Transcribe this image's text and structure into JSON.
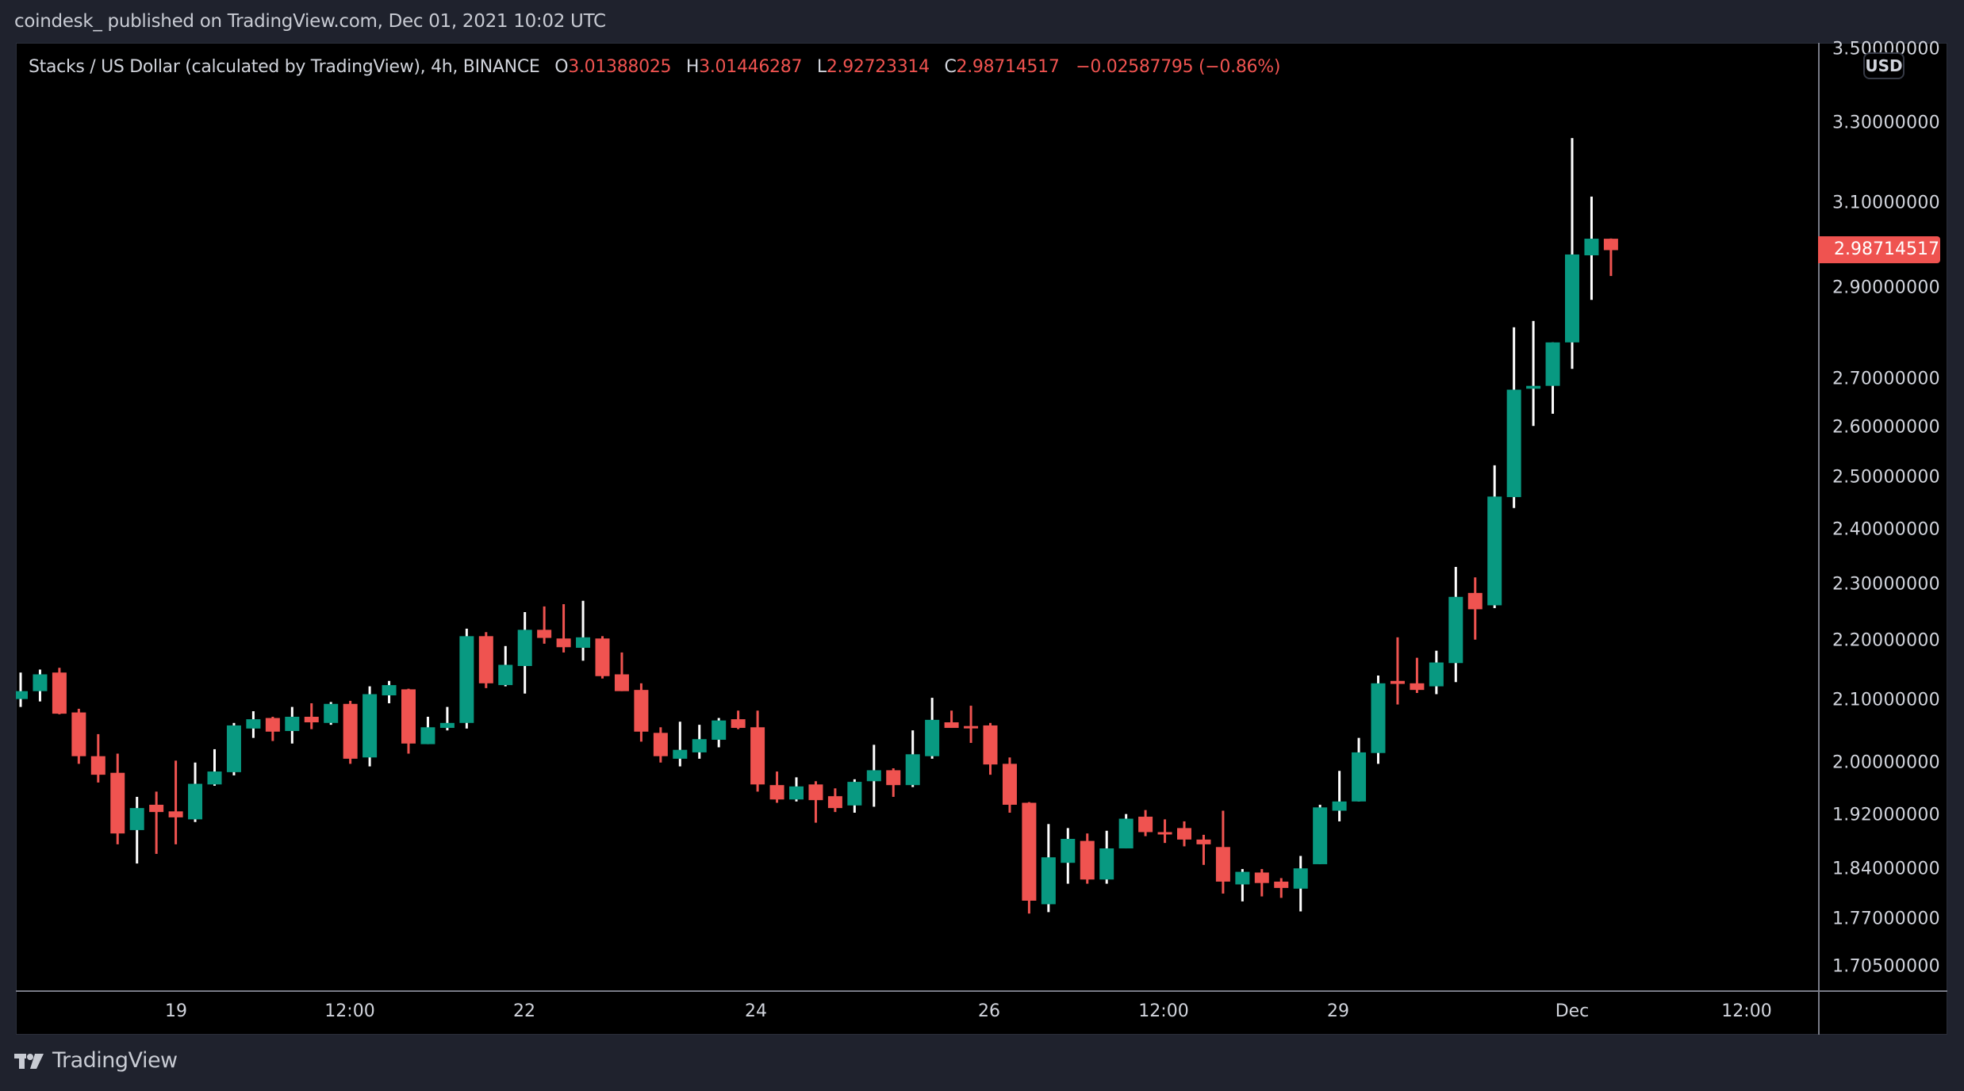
{
  "header": {
    "publisher": "coindesk_ published on TradingView.com, Dec 01, 2021 10:02 UTC"
  },
  "legend": {
    "symbol": "Stacks / US Dollar (calculated by TradingView), 4h, BINANCE",
    "o_label": "O",
    "o_value": "3.01388025",
    "h_label": "H",
    "h_value": "3.01446287",
    "l_label": "L",
    "l_value": "2.92723314",
    "c_label": "C",
    "c_value": "2.98714517",
    "change": "−0.02587795 (−0.86%)"
  },
  "price_axis": {
    "currency_badge": "USD",
    "last_price": "2.98714517",
    "ticks": [
      "3.50000000",
      "3.30000000",
      "3.10000000",
      "2.90000000",
      "2.70000000",
      "2.60000000",
      "2.50000000",
      "2.40000000",
      "2.30000000",
      "2.20000000",
      "2.10000000",
      "2.00000000",
      "1.92000000",
      "1.84000000",
      "1.77000000",
      "1.70500000"
    ]
  },
  "time_axis": {
    "ticks": [
      "19",
      "12:00",
      "22",
      "24",
      "26",
      "12:00",
      "29",
      "Dec",
      "12:00"
    ]
  },
  "footer": {
    "brand": "TradingView"
  },
  "colors": {
    "up": "#26a69a",
    "up_body": "#089981",
    "down": "#ef5350",
    "wick_up": "#ffffff",
    "background": "#000000",
    "frame": "#1f222d"
  },
  "chart_data": {
    "type": "candlestick",
    "title": "Stacks / US Dollar (calculated by TradingView), 4h, BINANCE",
    "xlabel": "",
    "ylabel": "USD",
    "scale": "log",
    "ylim": [
      1.69,
      3.55
    ],
    "interval": "4h",
    "x_ticks": [
      "19",
      "12:00",
      "22",
      "24",
      "26",
      "12:00",
      "29",
      "Dec",
      "12:00"
    ],
    "y_ticks": [
      3.5,
      3.3,
      3.1,
      2.9,
      2.7,
      2.6,
      2.5,
      2.4,
      2.3,
      2.2,
      2.1,
      2.0,
      1.92,
      1.84,
      1.77,
      1.705
    ],
    "grid": false,
    "last": {
      "open": 3.01388025,
      "high": 3.01446287,
      "low": 2.92723314,
      "close": 2.98714517,
      "change": -0.02587795,
      "change_pct": -0.86
    },
    "ohlc": [
      [
        2.102,
        2.146,
        2.089,
        2.115
      ],
      [
        2.115,
        2.151,
        2.098,
        2.143
      ],
      [
        2.146,
        2.154,
        2.077,
        2.078
      ],
      [
        2.08,
        2.086,
        1.998,
        2.01
      ],
      [
        2.01,
        2.045,
        1.969,
        1.981
      ],
      [
        1.984,
        2.014,
        1.876,
        1.892
      ],
      [
        1.897,
        1.947,
        1.848,
        1.93
      ],
      [
        1.935,
        1.955,
        1.862,
        1.924
      ],
      [
        1.925,
        2.003,
        1.876,
        1.916
      ],
      [
        1.913,
        2.0,
        1.909,
        1.967
      ],
      [
        1.966,
        2.021,
        1.964,
        1.986
      ],
      [
        1.985,
        2.063,
        1.98,
        2.059
      ],
      [
        2.054,
        2.082,
        2.039,
        2.069
      ],
      [
        2.071,
        2.073,
        2.034,
        2.049
      ],
      [
        2.05,
        2.089,
        2.03,
        2.073
      ],
      [
        2.073,
        2.095,
        2.053,
        2.064
      ],
      [
        2.063,
        2.097,
        2.06,
        2.094
      ],
      [
        2.094,
        2.099,
        1.998,
        2.006
      ],
      [
        2.008,
        2.123,
        1.994,
        2.11
      ],
      [
        2.108,
        2.132,
        2.095,
        2.125
      ],
      [
        2.118,
        2.119,
        2.014,
        2.03
      ],
      [
        2.029,
        2.073,
        2.029,
        2.056
      ],
      [
        2.055,
        2.089,
        2.051,
        2.063
      ],
      [
        2.063,
        2.221,
        2.054,
        2.208
      ],
      [
        2.208,
        2.215,
        2.12,
        2.128
      ],
      [
        2.125,
        2.191,
        2.123,
        2.159
      ],
      [
        2.157,
        2.25,
        2.111,
        2.219
      ],
      [
        2.219,
        2.26,
        2.195,
        2.205
      ],
      [
        2.204,
        2.264,
        2.18,
        2.189
      ],
      [
        2.188,
        2.27,
        2.166,
        2.206
      ],
      [
        2.204,
        2.208,
        2.136,
        2.14
      ],
      [
        2.143,
        2.18,
        2.115,
        2.115
      ],
      [
        2.117,
        2.128,
        2.033,
        2.049
      ],
      [
        2.047,
        2.056,
        2.0,
        2.01
      ],
      [
        2.006,
        2.065,
        1.994,
        2.02
      ],
      [
        2.016,
        2.06,
        2.006,
        2.037
      ],
      [
        2.036,
        2.071,
        2.024,
        2.067
      ],
      [
        2.069,
        2.083,
        2.053,
        2.055
      ],
      [
        2.056,
        2.083,
        1.955,
        1.966
      ],
      [
        1.965,
        1.986,
        1.938,
        1.943
      ],
      [
        1.943,
        1.977,
        1.94,
        1.963
      ],
      [
        1.966,
        1.971,
        1.908,
        1.942
      ],
      [
        1.948,
        1.96,
        1.924,
        1.93
      ],
      [
        1.934,
        1.974,
        1.923,
        1.97
      ],
      [
        1.971,
        2.028,
        1.932,
        1.988
      ],
      [
        1.988,
        1.991,
        1.947,
        1.965
      ],
      [
        1.965,
        2.051,
        1.962,
        2.013
      ],
      [
        2.01,
        2.104,
        2.006,
        2.068
      ],
      [
        2.064,
        2.083,
        2.055,
        2.055
      ],
      [
        2.058,
        2.091,
        2.031,
        2.055
      ],
      [
        2.059,
        2.063,
        1.981,
        1.997
      ],
      [
        1.998,
        2.008,
        1.923,
        1.935
      ],
      [
        1.938,
        1.939,
        1.777,
        1.795
      ],
      [
        1.79,
        1.906,
        1.779,
        1.857
      ],
      [
        1.849,
        1.9,
        1.819,
        1.884
      ],
      [
        1.881,
        1.892,
        1.819,
        1.825
      ],
      [
        1.825,
        1.896,
        1.819,
        1.87
      ],
      [
        1.87,
        1.921,
        1.87,
        1.914
      ],
      [
        1.917,
        1.927,
        1.888,
        1.894
      ],
      [
        1.894,
        1.913,
        1.878,
        1.892
      ],
      [
        1.9,
        1.91,
        1.873,
        1.883
      ],
      [
        1.883,
        1.89,
        1.846,
        1.876
      ],
      [
        1.872,
        1.926,
        1.805,
        1.822
      ],
      [
        1.818,
        1.84,
        1.794,
        1.836
      ],
      [
        1.835,
        1.84,
        1.801,
        1.82
      ],
      [
        1.822,
        1.827,
        1.799,
        1.813
      ],
      [
        1.812,
        1.859,
        1.78,
        1.841
      ],
      [
        1.847,
        1.935,
        1.847,
        1.931
      ],
      [
        1.926,
        1.987,
        1.91,
        1.94
      ],
      [
        1.94,
        2.039,
        1.94,
        2.016
      ],
      [
        2.015,
        2.141,
        1.998,
        2.128
      ],
      [
        2.132,
        2.206,
        2.093,
        2.127
      ],
      [
        2.128,
        2.171,
        2.112,
        2.117
      ],
      [
        2.123,
        2.183,
        2.11,
        2.163
      ],
      [
        2.162,
        2.331,
        2.13,
        2.277
      ],
      [
        2.284,
        2.312,
        2.202,
        2.255
      ],
      [
        2.262,
        2.524,
        2.257,
        2.463
      ],
      [
        2.462,
        2.812,
        2.441,
        2.678
      ],
      [
        2.68,
        2.826,
        2.603,
        2.686
      ],
      [
        2.686,
        2.779,
        2.628,
        2.779
      ],
      [
        2.779,
        3.261,
        2.722,
        2.977
      ],
      [
        2.975,
        3.115,
        2.873,
        3.014
      ],
      [
        3.01388025,
        3.01446287,
        2.92723314,
        2.98714517
      ]
    ]
  }
}
